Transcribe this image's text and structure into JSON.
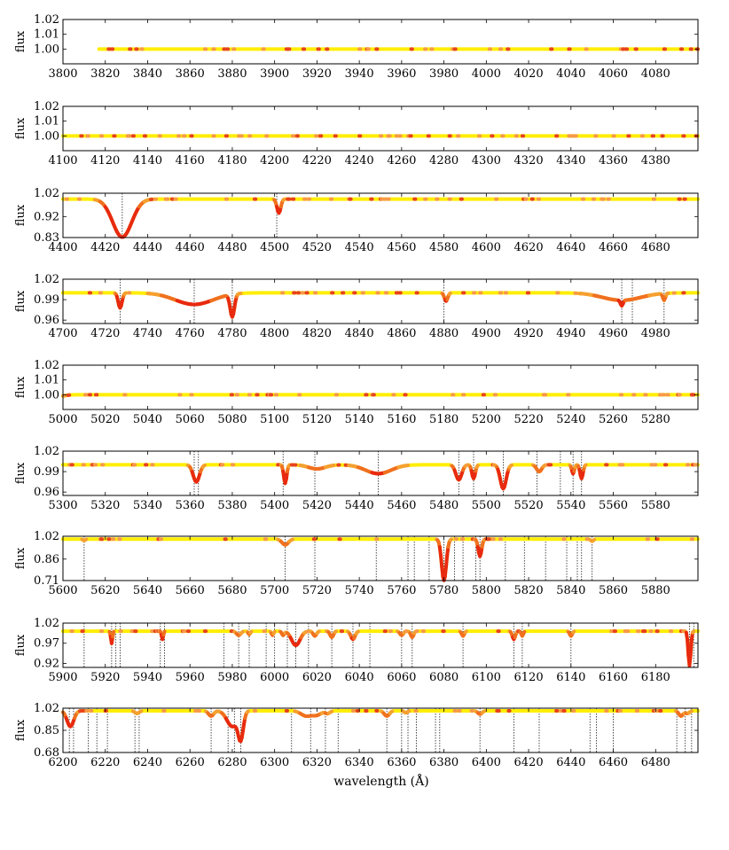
{
  "chart_data": [
    {
      "type": "line",
      "xlim": [
        3800,
        4100
      ],
      "ylim": [
        0.99,
        1.02
      ],
      "ylabel": "flux",
      "xticks": [
        3800,
        3820,
        3840,
        3860,
        3880,
        3900,
        3920,
        3940,
        3960,
        3980,
        4000,
        4020,
        4040,
        4060,
        4080
      ],
      "xtick_labels": [
        "3800",
        "3820",
        "3840",
        "3860",
        "3880",
        "3900",
        "3920",
        "3940",
        "3960",
        "3980",
        "4000",
        "4020",
        "4040",
        "4060",
        "4080"
      ],
      "yticks": [
        1.0,
        1.01,
        1.02
      ],
      "ytick_labels": [
        "1.00",
        "1.01",
        "1.02"
      ],
      "x_start": 3817,
      "continuum": 1.0,
      "absorption_lines": [],
      "reference_lines": []
    },
    {
      "type": "line",
      "xlim": [
        4100,
        4400
      ],
      "ylim": [
        0.99,
        1.02
      ],
      "ylabel": "flux",
      "xticks": [
        4100,
        4120,
        4140,
        4160,
        4180,
        4200,
        4220,
        4240,
        4260,
        4280,
        4300,
        4320,
        4340,
        4360,
        4380
      ],
      "xtick_labels": [
        "4100",
        "4120",
        "4140",
        "4160",
        "4180",
        "4200",
        "4220",
        "4240",
        "4260",
        "4280",
        "4300",
        "4320",
        "4340",
        "4360",
        "4380"
      ],
      "yticks": [
        1.0,
        1.01,
        1.02
      ],
      "ytick_labels": [
        "1.00",
        "1.01",
        "1.02"
      ],
      "x_start": 4100,
      "continuum": 1.0,
      "absorption_lines": [],
      "reference_lines": []
    },
    {
      "type": "line",
      "xlim": [
        4400,
        4700
      ],
      "ylim": [
        0.83,
        1.02
      ],
      "ylabel": "flux",
      "xticks": [
        4400,
        4420,
        4440,
        4460,
        4480,
        4500,
        4520,
        4540,
        4560,
        4580,
        4600,
        4620,
        4640,
        4660,
        4680
      ],
      "xtick_labels": [
        "4400",
        "4420",
        "4440",
        "4460",
        "4480",
        "4500",
        "4520",
        "4540",
        "4560",
        "4580",
        "4600",
        "4620",
        "4640",
        "4660",
        "4680"
      ],
      "yticks": [
        0.83,
        0.92,
        1.02
      ],
      "ytick_labels": [
        "0.83",
        "0.92",
        "1.02"
      ],
      "x_start": 4400,
      "continuum": 0.995,
      "absorption_lines": [
        {
          "center": 4428,
          "depth": 0.163,
          "width": 4.5
        },
        {
          "center": 4502,
          "depth": 0.06,
          "width": 0.9
        }
      ],
      "reference_lines": [
        4428,
        4501
      ]
    },
    {
      "type": "line",
      "xlim": [
        4700,
        5000
      ],
      "ylim": [
        0.955,
        1.02
      ],
      "ylabel": "flux",
      "xticks": [
        4700,
        4720,
        4740,
        4760,
        4780,
        4800,
        4820,
        4840,
        4860,
        4880,
        4900,
        4920,
        4940,
        4960,
        4980
      ],
      "xtick_labels": [
        "4700",
        "4720",
        "4740",
        "4760",
        "4780",
        "4800",
        "4820",
        "4840",
        "4860",
        "4880",
        "4900",
        "4920",
        "4940",
        "4960",
        "4980"
      ],
      "yticks": [
        0.96,
        0.99,
        1.02
      ],
      "ytick_labels": [
        "0.96",
        "0.99",
        "1.02"
      ],
      "x_start": 4700,
      "continuum": 1.0,
      "absorption_lines": [
        {
          "center": 4727,
          "depth": 0.022,
          "width": 0.9
        },
        {
          "center": 4762,
          "depth": 0.017,
          "width": 9
        },
        {
          "center": 4780,
          "depth": 0.033,
          "width": 1.0
        },
        {
          "center": 4881,
          "depth": 0.012,
          "width": 0.8
        },
        {
          "center": 4964,
          "depth": 0.011,
          "width": 9
        },
        {
          "center": 4964,
          "depth": 0.008,
          "width": 0.6
        },
        {
          "center": 4984,
          "depth": 0.01,
          "width": 0.6
        }
      ],
      "reference_lines": [
        4727,
        4762,
        4780,
        4880,
        4964,
        4969,
        4984
      ]
    },
    {
      "type": "line",
      "xlim": [
        5000,
        5300
      ],
      "ylim": [
        0.99,
        1.02
      ],
      "ylabel": "flux",
      "xticks": [
        5000,
        5020,
        5040,
        5060,
        5080,
        5100,
        5120,
        5140,
        5160,
        5180,
        5200,
        5220,
        5240,
        5260,
        5280
      ],
      "xtick_labels": [
        "5000",
        "5020",
        "5040",
        "5060",
        "5080",
        "5100",
        "5120",
        "5140",
        "5160",
        "5180",
        "5200",
        "5220",
        "5240",
        "5260",
        "5280"
      ],
      "yticks": [
        1.0,
        1.01,
        1.02
      ],
      "ytick_labels": [
        "1.00",
        "1.01",
        "1.02"
      ],
      "x_start": 5000,
      "continuum": 1.0,
      "absorption_lines": [
        {
          "center": 4998,
          "depth": 0.001,
          "width": 3
        }
      ],
      "reference_lines": []
    },
    {
      "type": "line",
      "xlim": [
        5300,
        5600
      ],
      "ylim": [
        0.955,
        1.02
      ],
      "ylabel": "flux",
      "xticks": [
        5300,
        5320,
        5340,
        5360,
        5380,
        5400,
        5420,
        5440,
        5460,
        5480,
        5500,
        5520,
        5540,
        5560,
        5580
      ],
      "xtick_labels": [
        "5300",
        "5320",
        "5340",
        "5360",
        "5380",
        "5400",
        "5420",
        "5440",
        "5460",
        "5480",
        "5500",
        "5520",
        "5540",
        "5560",
        "5580"
      ],
      "yticks": [
        0.96,
        0.99,
        1.02
      ],
      "ytick_labels": [
        "0.96",
        "0.99",
        "1.02"
      ],
      "x_start": 5300,
      "continuum": 1.0,
      "absorption_lines": [
        {
          "center": 5363,
          "depth": 0.025,
          "width": 1.5
        },
        {
          "center": 5405,
          "depth": 0.027,
          "width": 0.7
        },
        {
          "center": 5420,
          "depth": 0.006,
          "width": 4
        },
        {
          "center": 5449,
          "depth": 0.013,
          "width": 6
        },
        {
          "center": 5487,
          "depth": 0.022,
          "width": 1.4
        },
        {
          "center": 5494,
          "depth": 0.02,
          "width": 0.8
        },
        {
          "center": 5508,
          "depth": 0.035,
          "width": 1.4
        },
        {
          "center": 5525,
          "depth": 0.01,
          "width": 1.2
        },
        {
          "center": 5541,
          "depth": 0.013,
          "width": 0.6
        },
        {
          "center": 5545,
          "depth": 0.02,
          "width": 0.7
        }
      ],
      "reference_lines": [
        5362,
        5364,
        5404,
        5419,
        5449,
        5487,
        5494,
        5508,
        5524,
        5535,
        5541,
        5545
      ]
    },
    {
      "type": "line",
      "xlim": [
        5600,
        5900
      ],
      "ylim": [
        0.71,
        1.02
      ],
      "ylabel": "flux",
      "xticks": [
        5600,
        5620,
        5640,
        5660,
        5680,
        5700,
        5720,
        5740,
        5760,
        5780,
        5800,
        5820,
        5840,
        5860,
        5880
      ],
      "xtick_labels": [
        "5600",
        "5620",
        "5640",
        "5660",
        "5680",
        "5700",
        "5720",
        "5740",
        "5760",
        "5780",
        "5800",
        "5820",
        "5840",
        "5860",
        "5880"
      ],
      "yticks": [
        0.71,
        0.86,
        1.02
      ],
      "ytick_labels": [
        "0.71",
        "0.86",
        "1.02"
      ],
      "x_start": 5600,
      "continuum": 1.0,
      "absorption_lines": [
        {
          "center": 5610,
          "depth": 0.01,
          "width": 0.5
        },
        {
          "center": 5705,
          "depth": 0.04,
          "width": 1.5
        },
        {
          "center": 5780,
          "depth": 0.29,
          "width": 1.1
        },
        {
          "center": 5797,
          "depth": 0.12,
          "width": 0.8
        },
        {
          "center": 5850,
          "depth": 0.015,
          "width": 0.6
        }
      ],
      "reference_lines": [
        5610,
        5705,
        5719,
        5748,
        5763,
        5766,
        5773,
        5780,
        5785,
        5789,
        5795,
        5797,
        5809,
        5818,
        5828,
        5838,
        5843,
        5845,
        5850
      ]
    },
    {
      "type": "line",
      "xlim": [
        5900,
        6200
      ],
      "ylim": [
        0.91,
        1.02
      ],
      "ylabel": "flux",
      "xticks": [
        5900,
        5920,
        5940,
        5960,
        5980,
        6000,
        6020,
        6040,
        6060,
        6080,
        6100,
        6120,
        6140,
        6160,
        6180
      ],
      "xtick_labels": [
        "5900",
        "5920",
        "5940",
        "5960",
        "5980",
        "6000",
        "6020",
        "6040",
        "6060",
        "6080",
        "6100",
        "6120",
        "6140",
        "6160",
        "6180"
      ],
      "yticks": [
        0.92,
        0.97,
        1.02
      ],
      "ytick_labels": [
        "0.92",
        "0.97",
        "1.02"
      ],
      "x_start": 5900,
      "continuum": 1.0,
      "absorption_lines": [
        {
          "center": 5923,
          "depth": 0.03,
          "width": 0.4
        },
        {
          "center": 5947,
          "depth": 0.02,
          "width": 0.4
        },
        {
          "center": 5983,
          "depth": 0.01,
          "width": 1.0
        },
        {
          "center": 5988,
          "depth": 0.008,
          "width": 0.5
        },
        {
          "center": 5999,
          "depth": 0.01,
          "width": 0.5
        },
        {
          "center": 6004,
          "depth": 0.01,
          "width": 0.6
        },
        {
          "center": 6010,
          "depth": 0.035,
          "width": 2.0
        },
        {
          "center": 6019,
          "depth": 0.012,
          "width": 0.8
        },
        {
          "center": 6027,
          "depth": 0.015,
          "width": 0.8
        },
        {
          "center": 6037,
          "depth": 0.02,
          "width": 1.0
        },
        {
          "center": 6060,
          "depth": 0.01,
          "width": 0.8
        },
        {
          "center": 6065,
          "depth": 0.015,
          "width": 0.7
        },
        {
          "center": 6089,
          "depth": 0.012,
          "width": 0.6
        },
        {
          "center": 6113,
          "depth": 0.02,
          "width": 0.7
        },
        {
          "center": 6117,
          "depth": 0.012,
          "width": 0.5
        },
        {
          "center": 6140,
          "depth": 0.012,
          "width": 0.6
        },
        {
          "center": 6196,
          "depth": 0.085,
          "width": 0.6
        }
      ],
      "reference_lines": [
        5910,
        5923,
        5925,
        5927,
        5946,
        5948,
        5976,
        5983,
        5988,
        5996,
        6000,
        6006,
        6010,
        6016,
        6027,
        6037,
        6045,
        6060,
        6065,
        6089,
        6113,
        6117,
        6140,
        6196,
        6198,
        6200
      ]
    },
    {
      "type": "line",
      "xlim": [
        6200,
        6500
      ],
      "ylim": [
        0.68,
        1.02
      ],
      "ylabel": "flux",
      "xlabel": "wavelength (Å)",
      "xticks": [
        6200,
        6220,
        6240,
        6260,
        6280,
        6300,
        6320,
        6340,
        6360,
        6380,
        6400,
        6420,
        6440,
        6460,
        6480
      ],
      "xtick_labels": [
        "6200",
        "6220",
        "6240",
        "6260",
        "6280",
        "6300",
        "6320",
        "6340",
        "6360",
        "6380",
        "6400",
        "6420",
        "6440",
        "6460",
        "6480"
      ],
      "yticks": [
        0.68,
        0.85,
        1.02
      ],
      "ytick_labels": [
        "0.68",
        "0.85",
        "1.02"
      ],
      "x_start": 6200,
      "continuum": 1.0,
      "absorption_lines": [
        {
          "center": 6203.5,
          "depth": 0.12,
          "width": 1.6
        },
        {
          "center": 6235,
          "depth": 0.02,
          "width": 1.0
        },
        {
          "center": 6270,
          "depth": 0.04,
          "width": 1.2
        },
        {
          "center": 6280,
          "depth": 0.12,
          "width": 2.5
        },
        {
          "center": 6284,
          "depth": 0.2,
          "width": 1.2
        },
        {
          "center": 6315,
          "depth": 0.04,
          "width": 2.5
        },
        {
          "center": 6320,
          "depth": 0.03,
          "width": 2.0
        },
        {
          "center": 6325,
          "depth": 0.02,
          "width": 1.2
        },
        {
          "center": 6353,
          "depth": 0.04,
          "width": 1.2
        },
        {
          "center": 6362,
          "depth": 0.015,
          "width": 0.8
        },
        {
          "center": 6397,
          "depth": 0.025,
          "width": 1.0
        },
        {
          "center": 6492,
          "depth": 0.04,
          "width": 1.0
        },
        {
          "center": 6495,
          "depth": 0.02,
          "width": 1.0
        }
      ],
      "reference_lines": [
        6203,
        6205,
        6212,
        6216,
        6221,
        6234,
        6236,
        6270,
        6278,
        6281,
        6284,
        6308,
        6317,
        6324,
        6330,
        6353,
        6360,
        6363,
        6367,
        6376,
        6378,
        6397,
        6413,
        6425,
        6449,
        6452,
        6460,
        6490,
        6494,
        6497
      ]
    }
  ]
}
